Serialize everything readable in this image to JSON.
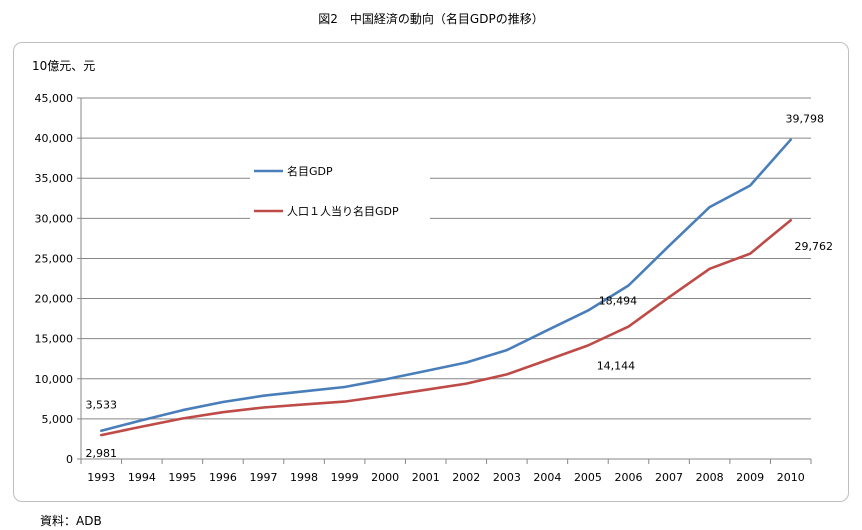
{
  "title": "図2　中国経済の動向（名目GDPの推移）",
  "source": "資料：ADB",
  "chart_data": {
    "type": "line",
    "title": "図2　中国経済の動向（名目GDPの推移）",
    "ylabel": "10億元、元",
    "xlabel": "",
    "ylim": [
      0,
      45000
    ],
    "yticks": [
      0,
      5000,
      10000,
      15000,
      20000,
      25000,
      30000,
      35000,
      40000,
      45000
    ],
    "ytick_labels": [
      "0",
      "5,000",
      "10,000",
      "15,000",
      "20,000",
      "25,000",
      "30,000",
      "35,000",
      "40,000",
      "45,000"
    ],
    "grid": true,
    "legend_position": "upper-left inside plot",
    "categories": [
      "1993",
      "1994",
      "1995",
      "1996",
      "1997",
      "1998",
      "1999",
      "2000",
      "2001",
      "2002",
      "2003",
      "2004",
      "2005",
      "2006",
      "2007",
      "2008",
      "2009",
      "2010"
    ],
    "series": [
      {
        "name": "名目GDP",
        "color": "#4a7ebb",
        "values": [
          3533,
          4820,
          6080,
          7100,
          7890,
          8440,
          8970,
          9920,
          10970,
          12030,
          13580,
          16060,
          18494,
          21630,
          26580,
          31400,
          34090,
          39798
        ]
      },
      {
        "name": "人口１人当り名目GDP",
        "color": "#be4b48",
        "values": [
          2981,
          4040,
          5050,
          5840,
          6420,
          6800,
          7160,
          7860,
          8620,
          9400,
          10540,
          12340,
          14144,
          16500,
          20170,
          23710,
          25610,
          29762
        ]
      }
    ],
    "data_labels": [
      {
        "series": 0,
        "index": 0,
        "text": "3,533"
      },
      {
        "series": 1,
        "index": 0,
        "text": "2,981"
      },
      {
        "series": 0,
        "index": 12,
        "text": "18,494"
      },
      {
        "series": 1,
        "index": 12,
        "text": "14,144"
      },
      {
        "series": 0,
        "index": 17,
        "text": "39,798"
      },
      {
        "series": 1,
        "index": 17,
        "text": "29,762"
      }
    ]
  }
}
